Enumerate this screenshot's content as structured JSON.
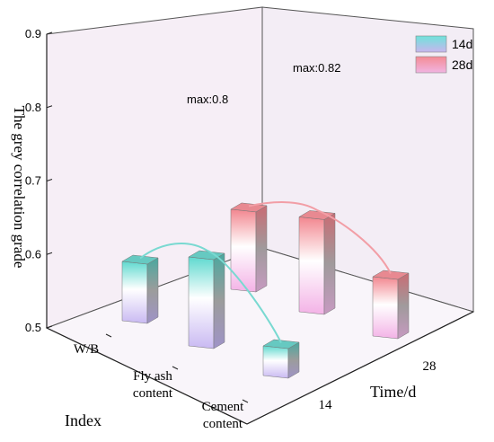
{
  "chart_data": {
    "type": "bar",
    "ylabel": "The grey correlation grade",
    "xlabel": "Index",
    "zlabel": "Time/d",
    "ylim": [
      0.5,
      0.9
    ],
    "yticks": [
      "0.5",
      "0.6",
      "0.7",
      "0.8",
      "0.9"
    ],
    "categories": [
      [
        "W/B"
      ],
      [
        "Fly ash",
        "content"
      ],
      [
        "Cement",
        "content"
      ]
    ],
    "time_ticks": [
      "14",
      "28"
    ],
    "series": [
      {
        "name": "14d",
        "values": [
          0.7,
          0.8,
          0.6
        ],
        "max_label": "max:0.8",
        "color": "#7fe8e0"
      },
      {
        "name": "28d",
        "values": [
          0.77,
          0.82,
          0.7
        ],
        "max_label": "max:0.82",
        "color": "#f4a0a8"
      }
    ],
    "legend_position": "top-right",
    "grid": false
  }
}
